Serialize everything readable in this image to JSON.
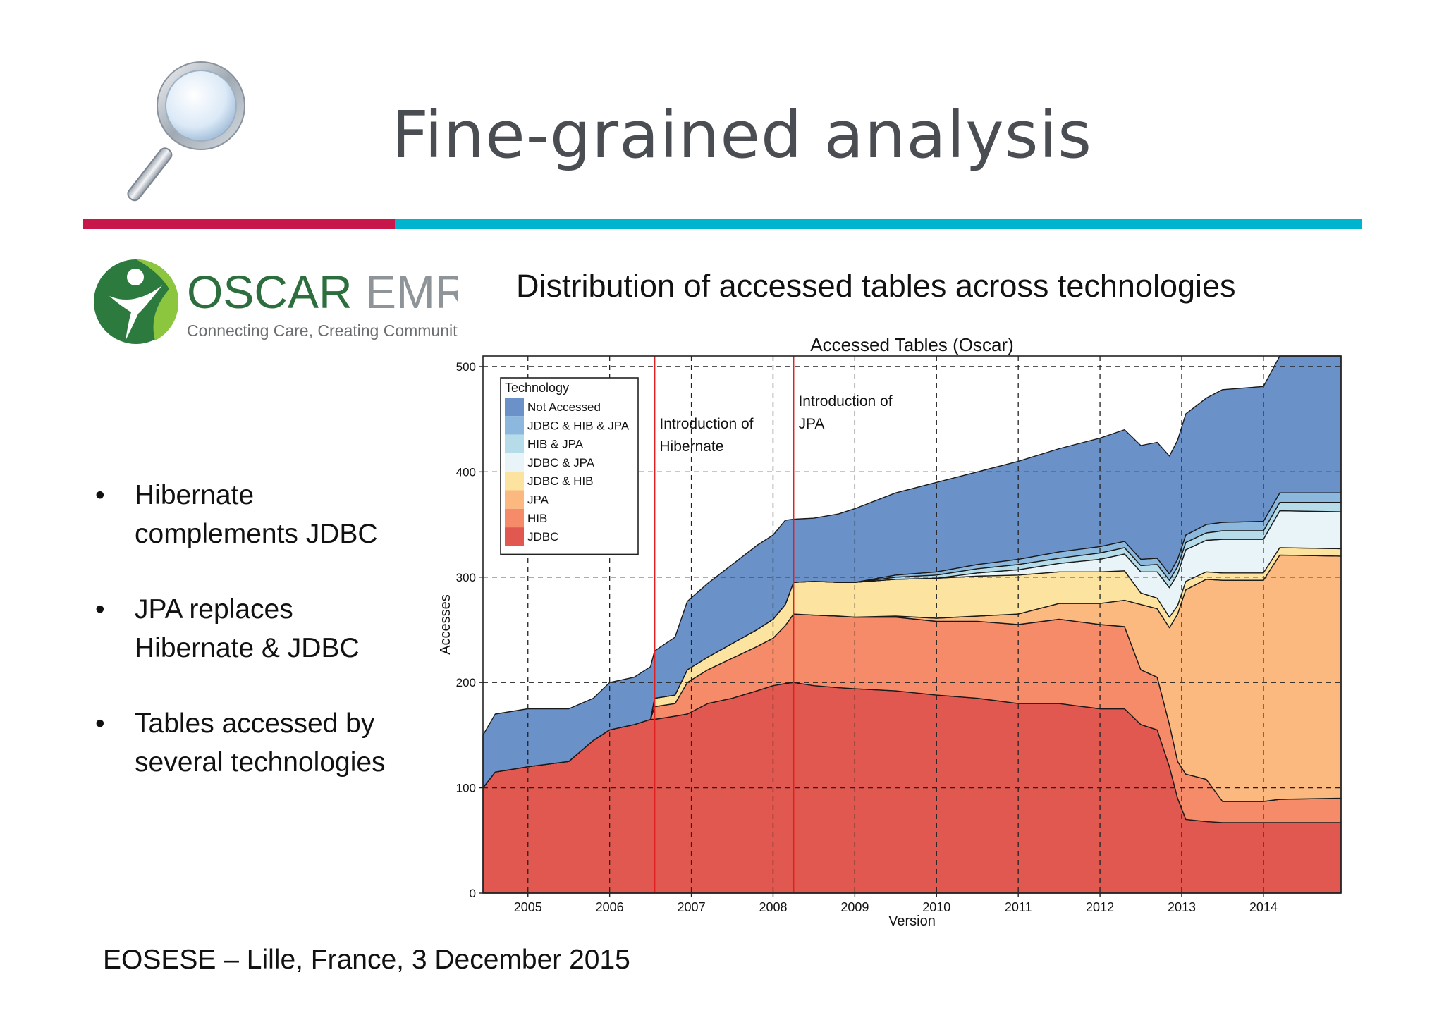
{
  "slide": {
    "title": "Fine-grained analysis",
    "subtitle": "Distribution of accessed tables across technologies",
    "footer": "EOSESE – Lille, France,  3 December 2015",
    "bullets": [
      {
        "lines": [
          "Hibernate",
          "complements JDBC"
        ]
      },
      {
        "lines": [
          "JPA replaces",
          "Hibernate  & JDBC"
        ]
      },
      {
        "lines": [
          "Tables accessed by",
          "several technologies"
        ]
      }
    ],
    "bullet_glyph": "•",
    "logo": {
      "name_dark": "OSCAR",
      "name_light": "EMR",
      "tagline": "Connecting Care, Creating Community."
    },
    "accent_colors": {
      "rule_left": "#c8174a",
      "rule_right": "#00b4d0"
    },
    "icons": [
      "magnifier-icon",
      "oscar-logo-icon"
    ]
  },
  "chart_data": {
    "type": "area",
    "stacked": true,
    "title": "Accessed Tables (Oscar)",
    "xlabel": "Version",
    "ylabel": "Accesses",
    "xlim": [
      2004.45,
      2014.95
    ],
    "ylim": [
      0,
      510
    ],
    "xticks": [
      2005,
      2006,
      2007,
      2008,
      2009,
      2010,
      2011,
      2012,
      2013,
      2014
    ],
    "yticks": [
      0,
      100,
      200,
      300,
      400,
      500
    ],
    "grid": true,
    "legend": {
      "title": "Technology",
      "position": "top-left"
    },
    "x": [
      2004.45,
      2004.6,
      2005.0,
      2005.5,
      2005.8,
      2006.0,
      2006.3,
      2006.5,
      2006.55,
      2006.8,
      2006.95,
      2007.2,
      2007.5,
      2007.8,
      2008.0,
      2008.15,
      2008.25,
      2008.5,
      2008.8,
      2009.0,
      2009.5,
      2010.0,
      2010.5,
      2011.0,
      2011.5,
      2012.0,
      2012.3,
      2012.5,
      2012.7,
      2012.85,
      2012.95,
      2013.05,
      2013.3,
      2013.5,
      2014.0,
      2014.2,
      2014.95
    ],
    "series": [
      {
        "name": "JDBC",
        "color": "#e0584f",
        "values": [
          100,
          115,
          120,
          125,
          145,
          155,
          160,
          165,
          165,
          168,
          170,
          180,
          185,
          192,
          197,
          199,
          200,
          197,
          195,
          194,
          192,
          188,
          185,
          180,
          180,
          175,
          175,
          160,
          155,
          120,
          90,
          70,
          68,
          67,
          67,
          67,
          67
        ]
      },
      {
        "name": "HIB",
        "color": "#f58b68",
        "values": [
          0,
          0,
          0,
          0,
          0,
          0,
          0,
          0,
          12,
          12,
          30,
          32,
          38,
          42,
          45,
          55,
          65,
          67,
          68,
          68,
          70,
          70,
          73,
          75,
          80,
          80,
          78,
          52,
          50,
          40,
          35,
          43,
          40,
          20,
          20,
          22,
          23
        ]
      },
      {
        "name": "JPA",
        "color": "#fbb97f",
        "values": [
          0,
          0,
          0,
          0,
          0,
          0,
          0,
          0,
          0,
          0,
          0,
          0,
          0,
          0,
          0,
          0,
          0,
          0,
          0,
          0,
          1,
          3,
          5,
          10,
          15,
          20,
          25,
          62,
          65,
          92,
          140,
          175,
          190,
          210,
          210,
          232,
          230
        ]
      },
      {
        "name": "JDBC & HIB",
        "color": "#fde3a0",
        "values": [
          0,
          0,
          0,
          0,
          0,
          0,
          0,
          0,
          8,
          8,
          12,
          12,
          14,
          16,
          18,
          20,
          30,
          32,
          32,
          33,
          35,
          38,
          38,
          37,
          30,
          30,
          28,
          11,
          10,
          10,
          8,
          8,
          7,
          7,
          7,
          7,
          7
        ]
      },
      {
        "name": "JDBC & JPA",
        "color": "#e9f4f9",
        "values": [
          0,
          0,
          0,
          0,
          0,
          0,
          0,
          0,
          0,
          0,
          0,
          0,
          0,
          0,
          0,
          0,
          0,
          0,
          0,
          0,
          0,
          0,
          3,
          5,
          8,
          12,
          16,
          20,
          25,
          28,
          30,
          30,
          30,
          32,
          32,
          35,
          35
        ]
      },
      {
        "name": "HIB & JPA",
        "color": "#b6dcea",
        "values": [
          0,
          0,
          0,
          0,
          0,
          0,
          0,
          0,
          0,
          0,
          0,
          0,
          0,
          0,
          0,
          0,
          0,
          0,
          0,
          0,
          2,
          3,
          4,
          5,
          5,
          6,
          6,
          6,
          7,
          7,
          7,
          7,
          7,
          8,
          8,
          8,
          9
        ]
      },
      {
        "name": "JDBC & HIB & JPA",
        "color": "#8cb8de",
        "values": [
          0,
          0,
          0,
          0,
          0,
          0,
          0,
          0,
          0,
          0,
          0,
          0,
          0,
          0,
          0,
          0,
          0,
          0,
          0,
          0,
          2,
          3,
          4,
          5,
          6,
          6,
          6,
          6,
          6,
          6,
          7,
          7,
          8,
          8,
          9,
          9,
          9
        ]
      },
      {
        "name": "Not Accessed",
        "color": "#6a91c8",
        "values": [
          50,
          55,
          55,
          50,
          40,
          45,
          45,
          50,
          45,
          55,
          65,
          70,
          75,
          80,
          80,
          80,
          60,
          60,
          65,
          70,
          78,
          85,
          88,
          93,
          98,
          103,
          106,
          108,
          110,
          112,
          113,
          115,
          120,
          126,
          128,
          130,
          130
        ]
      }
    ],
    "annotations": [
      {
        "x": 2006.55,
        "lines": [
          "Introduction of",
          "Hibernate"
        ]
      },
      {
        "x": 2008.25,
        "lines": [
          "Introduction of",
          "JPA"
        ]
      }
    ],
    "annotation_color": "#e02020"
  }
}
